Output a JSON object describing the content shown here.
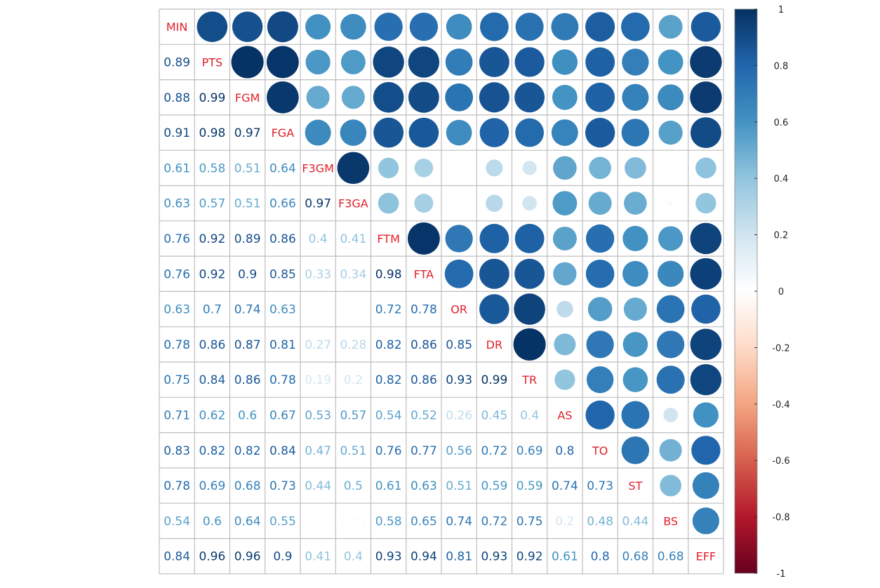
{
  "chart_data": {
    "type": "heatmap",
    "variables": [
      "MIN",
      "PTS",
      "FGM",
      "FGA",
      "F3GM",
      "F3GA",
      "FTM",
      "FTA",
      "OR",
      "DR",
      "TR",
      "AS",
      "TO",
      "ST",
      "BS",
      "EFF"
    ],
    "matrix": [
      [
        1,
        0.89,
        0.88,
        0.91,
        0.61,
        0.63,
        0.76,
        0.76,
        0.63,
        0.78,
        0.75,
        0.71,
        0.83,
        0.78,
        0.54,
        0.84
      ],
      [
        0.89,
        1,
        0.99,
        0.98,
        0.58,
        0.57,
        0.92,
        0.92,
        0.7,
        0.86,
        0.84,
        0.62,
        0.82,
        0.69,
        0.6,
        0.96
      ],
      [
        0.88,
        0.99,
        1,
        0.97,
        0.51,
        0.51,
        0.89,
        0.9,
        0.74,
        0.87,
        0.86,
        0.6,
        0.82,
        0.68,
        0.64,
        0.96
      ],
      [
        0.91,
        0.98,
        0.97,
        1,
        0.64,
        0.66,
        0.86,
        0.85,
        0.63,
        0.81,
        0.78,
        0.67,
        0.84,
        0.73,
        0.55,
        0.9
      ],
      [
        0.61,
        0.58,
        0.51,
        0.64,
        1,
        0.97,
        0.4,
        0.33,
        0,
        0.27,
        0.19,
        0.53,
        0.47,
        0.44,
        0.02,
        0.41
      ],
      [
        0.63,
        0.57,
        0.51,
        0.66,
        0.97,
        1,
        0.41,
        0.34,
        0,
        0.28,
        0.2,
        0.57,
        0.51,
        0.5,
        0.03,
        0.4
      ],
      [
        0.76,
        0.92,
        0.89,
        0.86,
        0.4,
        0.41,
        1,
        0.98,
        0.72,
        0.82,
        0.82,
        0.54,
        0.76,
        0.61,
        0.58,
        0.93
      ],
      [
        0.76,
        0.92,
        0.9,
        0.85,
        0.33,
        0.34,
        0.98,
        1,
        0.78,
        0.86,
        0.86,
        0.52,
        0.77,
        0.63,
        0.65,
        0.94
      ],
      [
        0.63,
        0.7,
        0.74,
        0.63,
        0,
        0,
        0.72,
        0.78,
        1,
        0.85,
        0.93,
        0.26,
        0.56,
        0.51,
        0.74,
        0.81
      ],
      [
        0.78,
        0.86,
        0.87,
        0.81,
        0.27,
        0.28,
        0.82,
        0.86,
        0.85,
        1,
        0.99,
        0.45,
        0.72,
        0.59,
        0.72,
        0.93
      ],
      [
        0.75,
        0.84,
        0.86,
        0.78,
        0.19,
        0.2,
        0.82,
        0.86,
        0.93,
        0.99,
        1,
        0.4,
        0.69,
        0.59,
        0.75,
        0.92
      ],
      [
        0.71,
        0.62,
        0.6,
        0.67,
        0.53,
        0.57,
        0.54,
        0.52,
        0.26,
        0.45,
        0.4,
        1,
        0.8,
        0.74,
        0.2,
        0.61
      ],
      [
        0.83,
        0.82,
        0.82,
        0.84,
        0.47,
        0.51,
        0.76,
        0.77,
        0.56,
        0.72,
        0.69,
        0.8,
        1,
        0.73,
        0.48,
        0.8
      ],
      [
        0.78,
        0.69,
        0.68,
        0.73,
        0.44,
        0.5,
        0.61,
        0.63,
        0.51,
        0.59,
        0.59,
        0.74,
        0.73,
        1,
        0.44,
        0.68
      ],
      [
        0.54,
        0.6,
        0.64,
        0.55,
        0.02,
        0.03,
        0.58,
        0.65,
        0.74,
        0.72,
        0.75,
        0.2,
        0.48,
        0.44,
        1,
        0.68
      ],
      [
        0.84,
        0.96,
        0.96,
        0.9,
        0.41,
        0.4,
        0.93,
        0.94,
        0.81,
        0.93,
        0.92,
        0.61,
        0.8,
        0.68,
        0.68,
        1
      ]
    ],
    "lower": "number",
    "upper": "circle",
    "colorbar": {
      "range": [
        -1,
        1
      ],
      "ticks": [
        "1",
        "0.8",
        "0.6",
        "0.4",
        "0.2",
        "0",
        "-0.2",
        "-0.4",
        "-0.6",
        "-0.8",
        "-1"
      ]
    },
    "colors": {
      "negative_end": "#67001F",
      "neutral": "#FFFFFF",
      "positive_end": "#053061",
      "diagonal_label": "#E0202A",
      "grid": "#BEBEBE"
    }
  }
}
